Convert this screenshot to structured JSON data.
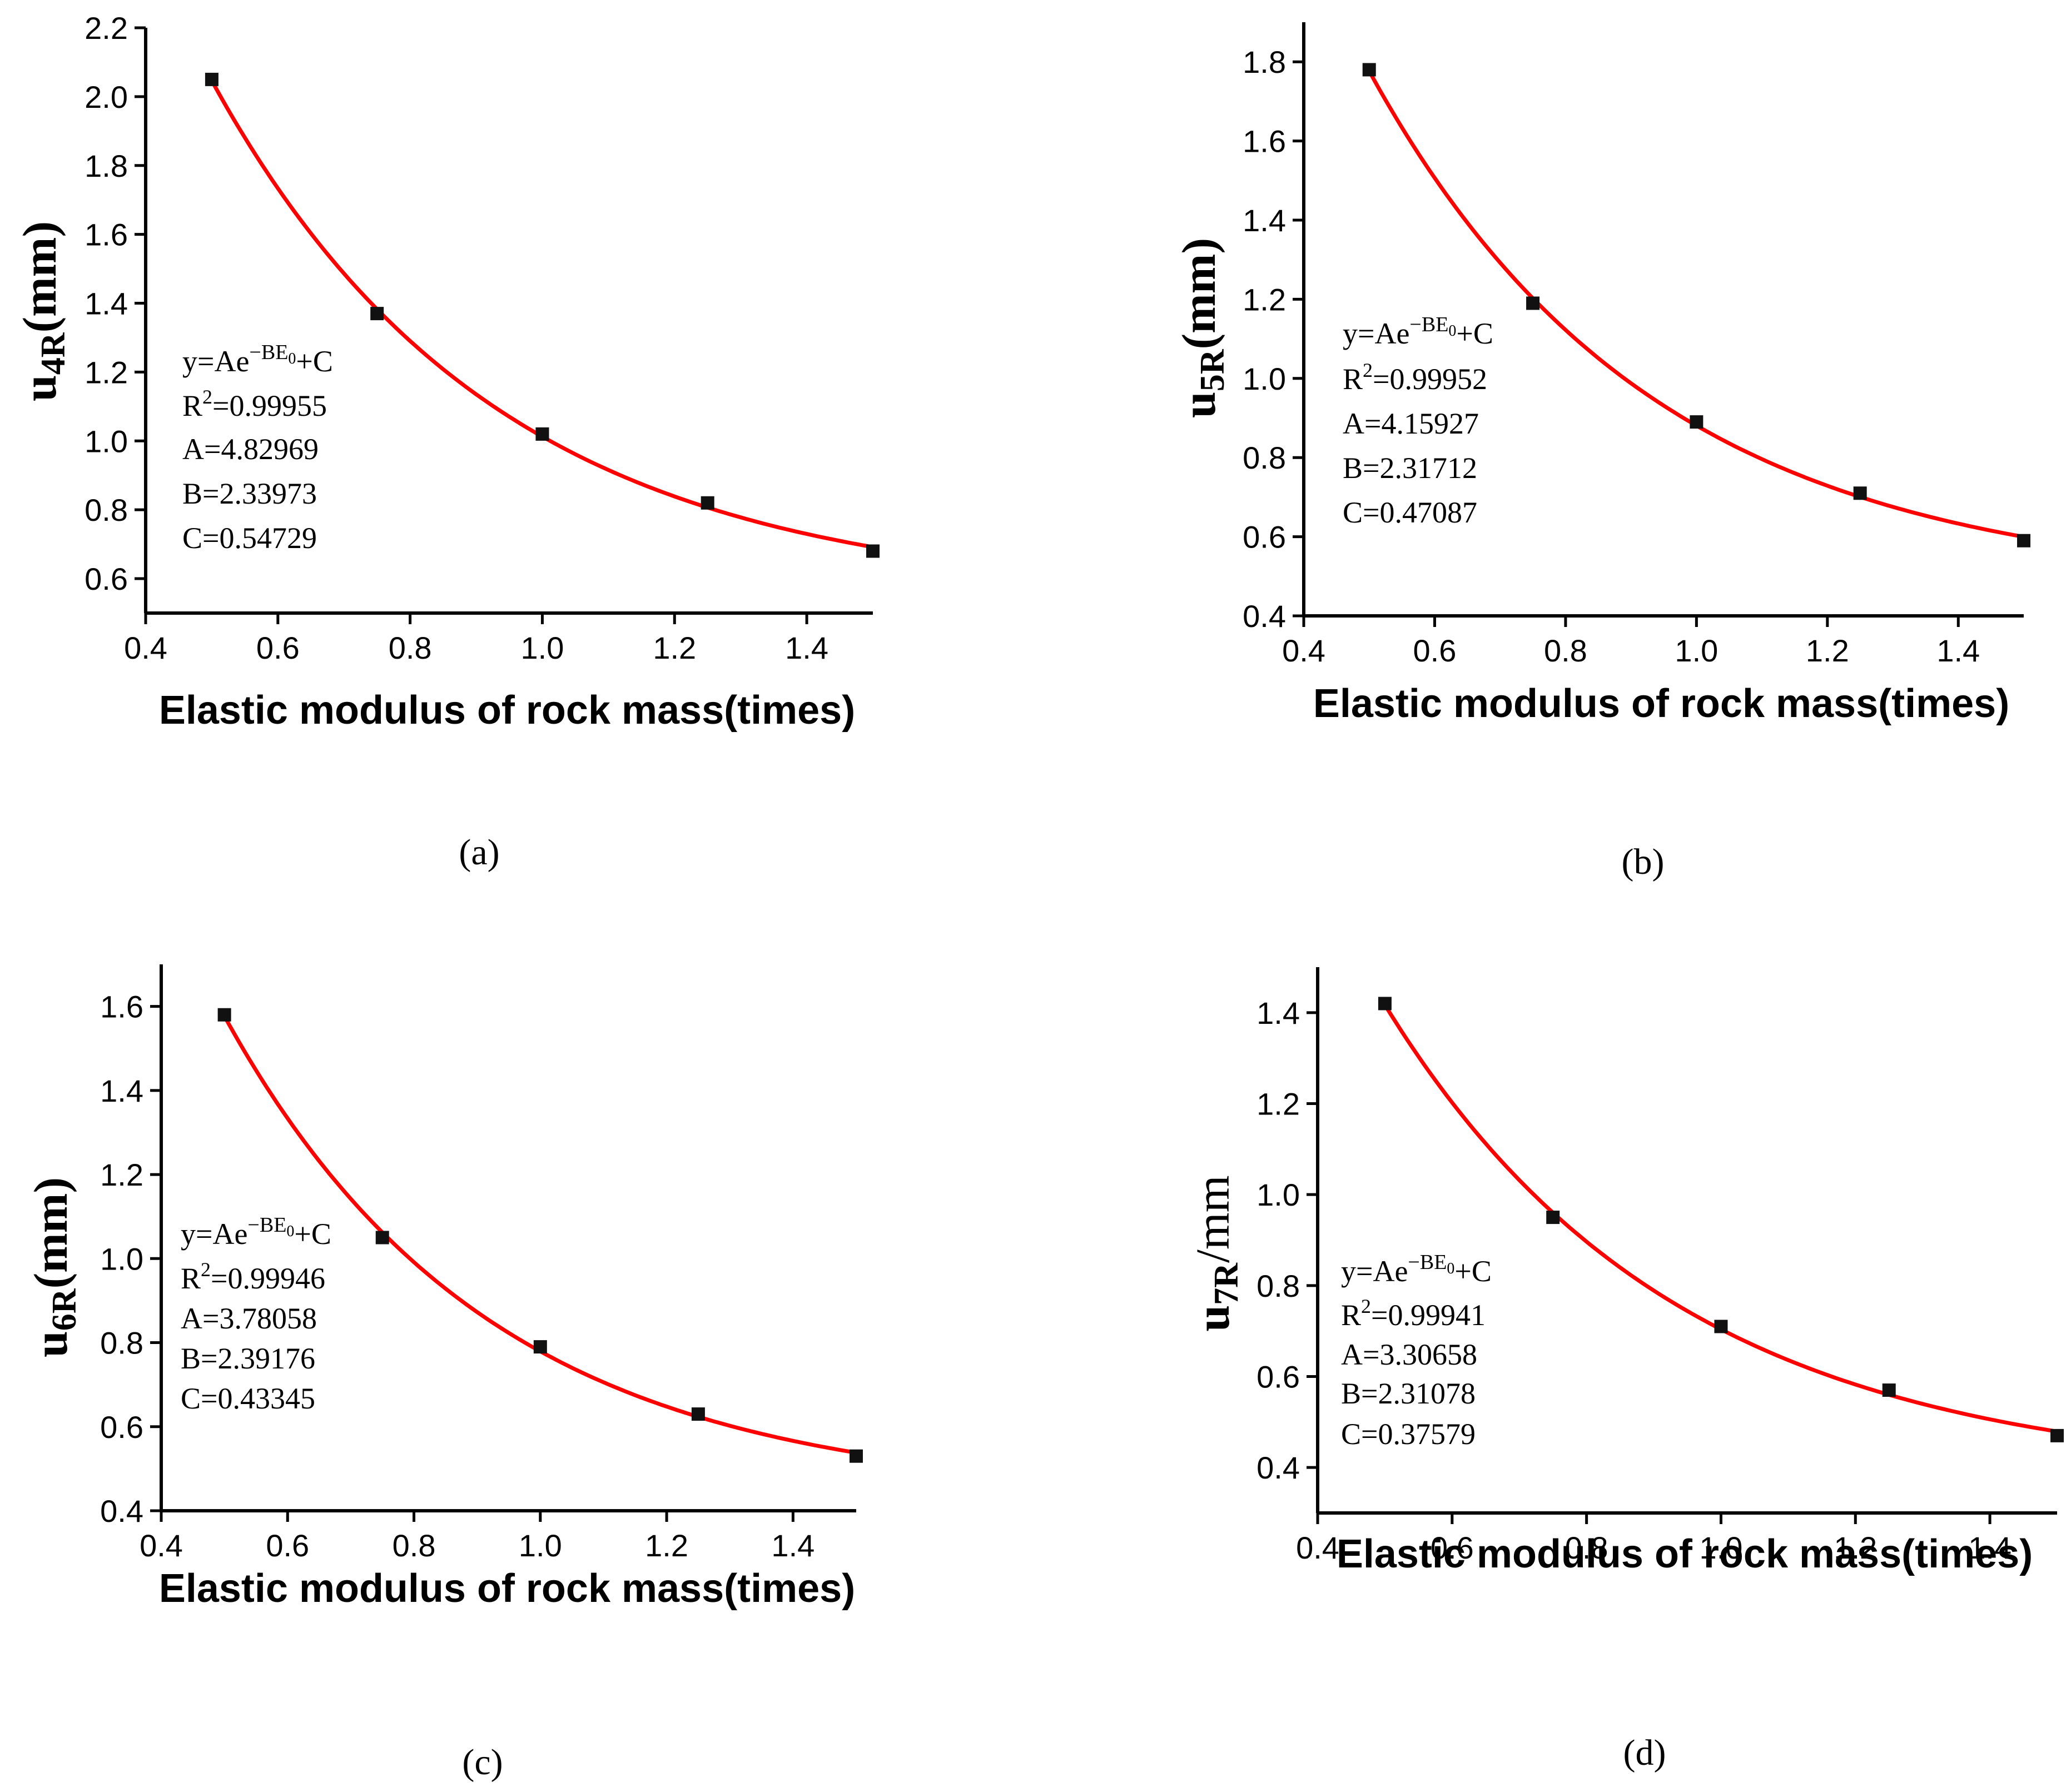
{
  "chart_data": [
    {
      "type": "scatter",
      "panel": "(a)",
      "xlabel": "Elastic modulus of rock mass(times)",
      "ylabel_main": "u",
      "ylabel_sub": "4R",
      "ylabel_unit": "(mm)",
      "xlim": [
        0.4,
        1.5
      ],
      "ylim": [
        0.5,
        2.2
      ],
      "xticks": [
        "0.4",
        "0.6",
        "0.8",
        "1.0",
        "1.2",
        "1.4"
      ],
      "yticks": [
        "0.6",
        "0.8",
        "1.0",
        "1.2",
        "1.4",
        "1.6",
        "1.8",
        "2.0",
        "2.2"
      ],
      "x": [
        0.5,
        0.75,
        1.0,
        1.25,
        1.5
      ],
      "y": [
        2.05,
        1.37,
        1.02,
        0.82,
        0.68
      ],
      "fit": {
        "formula": "y=Ae",
        "exponent": "−BE",
        "exponent_sub": "0",
        "tail": "+C",
        "r2_label": "R",
        "r2_sup": "2",
        "r2_value": "=0.99955",
        "A": "A=4.82969",
        "B": "B=2.33973",
        "C": "C=0.54729"
      }
    },
    {
      "type": "scatter",
      "panel": "(b)",
      "xlabel": "Elastic modulus of rock mass(times)",
      "ylabel_main": "u",
      "ylabel_sub": "5R",
      "ylabel_unit": "(mm)",
      "xlim": [
        0.4,
        1.5
      ],
      "ylim": [
        0.4,
        1.9
      ],
      "xticks": [
        "0.4",
        "0.6",
        "0.8",
        "1.0",
        "1.2",
        "1.4"
      ],
      "yticks": [
        "0.4",
        "0.6",
        "0.8",
        "1.0",
        "1.2",
        "1.4",
        "1.6",
        "1.8"
      ],
      "x": [
        0.5,
        0.75,
        1.0,
        1.25,
        1.5
      ],
      "y": [
        1.78,
        1.19,
        0.89,
        0.71,
        0.59
      ],
      "fit": {
        "formula": "y=Ae",
        "exponent": "−BE",
        "exponent_sub": "0",
        "tail": "+C",
        "r2_label": "R",
        "r2_sup": "2",
        "r2_value": "=0.99952",
        "A": "A=4.15927",
        "B": "B=2.31712",
        "C": "C=0.47087"
      }
    },
    {
      "type": "scatter",
      "panel": "(c)",
      "xlabel": "Elastic modulus of rock mass(times)",
      "ylabel_main": "u",
      "ylabel_sub": "6R",
      "ylabel_unit": "(mm)",
      "xlim": [
        0.4,
        1.5
      ],
      "ylim": [
        0.4,
        1.7
      ],
      "xticks": [
        "0.4",
        "0.6",
        "0.8",
        "1.0",
        "1.2",
        "1.4"
      ],
      "yticks": [
        "0.4",
        "0.6",
        "0.8",
        "1.0",
        "1.2",
        "1.4",
        "1.6"
      ],
      "x": [
        0.5,
        0.75,
        1.0,
        1.25,
        1.5
      ],
      "y": [
        1.58,
        1.05,
        0.79,
        0.63,
        0.53
      ],
      "fit": {
        "formula": "y=Ae",
        "exponent": "−BE",
        "exponent_sub": "0",
        "tail": "+C",
        "r2_label": "R",
        "r2_sup": "2",
        "r2_value": "=0.99946",
        "A": "A=3.78058",
        "B": "B=2.39176",
        "C": "C=0.43345"
      }
    },
    {
      "type": "scatter",
      "panel": "(d)",
      "xlabel": "Elastic modulus of rock mass(times)",
      "ylabel_main": "u",
      "ylabel_sub": "7R",
      "ylabel_unit": "/mm",
      "xlim": [
        0.4,
        1.5
      ],
      "ylim": [
        0.3,
        1.5
      ],
      "xticks": [
        "0.4",
        "0.6",
        "0.8",
        "1.0",
        "1.2",
        "1.4"
      ],
      "yticks": [
        "0.4",
        "0.6",
        "0.8",
        "1.0",
        "1.2",
        "1.4"
      ],
      "x": [
        0.5,
        0.75,
        1.0,
        1.25,
        1.5
      ],
      "y": [
        1.42,
        0.95,
        0.71,
        0.57,
        0.47
      ],
      "fit": {
        "formula": "y=Ae",
        "exponent": "−BE",
        "exponent_sub": "0",
        "tail": "+C",
        "r2_label": "R",
        "r2_sup": "2",
        "r2_value": "=0.99941",
        "A": "A=3.30658",
        "B": "B=2.31078",
        "C": "C=0.37579"
      }
    }
  ],
  "colors": {
    "fit_curve": "#ff0000",
    "points": "#111111",
    "axes": "#000000"
  }
}
